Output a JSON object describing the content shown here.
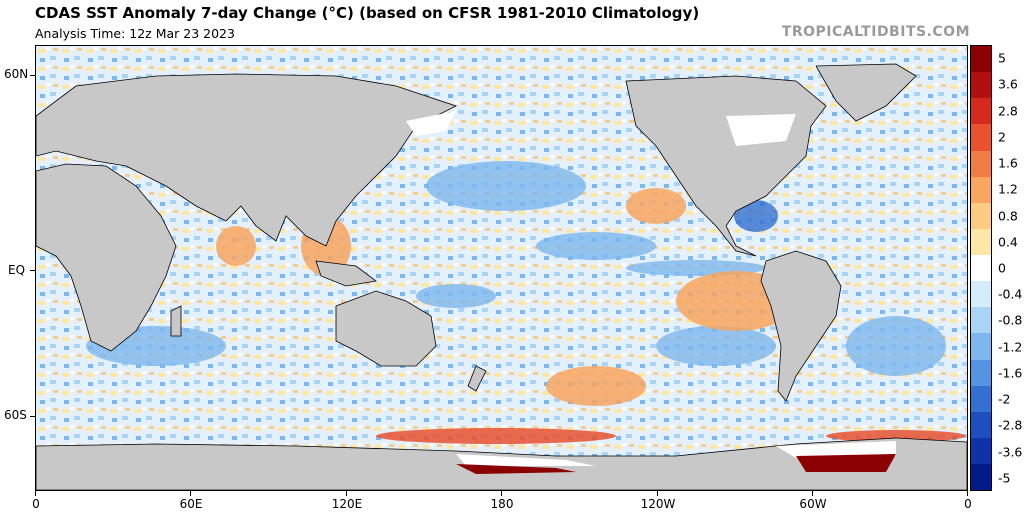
{
  "header": {
    "title": "CDAS SST Anomaly 7-day Change (°C) (based on CFSR 1981-2010 Climatology)",
    "analysis_time": "Analysis Time: 12z Mar 23 2023",
    "brand": "TROPICALTIDBITS.COM"
  },
  "axes": {
    "lat_labels": [
      "60N",
      "EQ",
      "60S"
    ],
    "lon_labels": [
      "0",
      "60E",
      "120E",
      "180",
      "120W",
      "60W",
      "0"
    ]
  },
  "colorbar": {
    "labels": [
      "5",
      "3.6",
      "2.8",
      "2",
      "1.6",
      "1.2",
      "0.8",
      "0.4",
      "0",
      "-0.4",
      "-0.8",
      "-1.2",
      "-1.6",
      "-2",
      "-2.8",
      "-3.6",
      "-5"
    ],
    "colors": [
      "#8b0000",
      "#b01010",
      "#d62a1f",
      "#e9522f",
      "#f27c45",
      "#f8a660",
      "#fbcb82",
      "#fde7a6",
      "#ffffff",
      "#d5ecfb",
      "#a9d4f6",
      "#7db7ee",
      "#5494e0",
      "#3370cf",
      "#1d4fbf",
      "#0f32a8",
      "#031a8a"
    ]
  },
  "colors": {
    "land": "#c8c8c8",
    "ocean_warm": "#fde7a6",
    "ocean_cool": "#cfe5f8"
  }
}
